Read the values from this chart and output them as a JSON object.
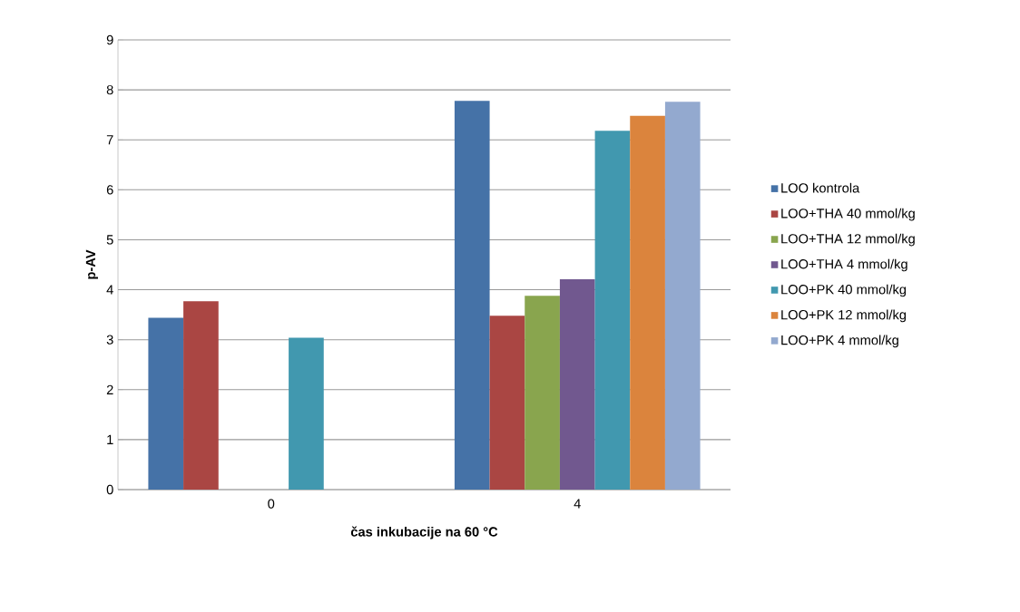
{
  "chart_data": {
    "type": "bar",
    "xlabel": "čas inkubacije  na 60 °C",
    "ylabel": "p-AV",
    "categories": [
      "0",
      "4"
    ],
    "series": [
      {
        "name": "LOO kontrola",
        "color": "#4572a7",
        "values": [
          3.44,
          7.78
        ]
      },
      {
        "name": "LOO+THA 40 mmol/kg",
        "color": "#aa4643",
        "values": [
          3.77,
          3.48
        ]
      },
      {
        "name": "LOO+THA 12 mmol/kg",
        "color": "#89a54e",
        "values": [
          null,
          3.88
        ]
      },
      {
        "name": "LOO+THA 4 mmol/kg",
        "color": "#71588f",
        "values": [
          null,
          4.21
        ]
      },
      {
        "name": "LOO+PK 40 mmol/kg",
        "color": "#4198af",
        "values": [
          3.04,
          7.18
        ]
      },
      {
        "name": "LOO+PK 12 mmol/kg",
        "color": "#db843d",
        "values": [
          null,
          7.48
        ]
      },
      {
        "name": "LOO+PK 4 mmol/kg",
        "color": "#93a9cf",
        "values": [
          null,
          7.76
        ]
      }
    ],
    "ylim": [
      0,
      9
    ],
    "yticks": [
      0,
      1,
      2,
      3,
      4,
      5,
      6,
      7,
      8,
      9
    ],
    "grid": "y",
    "legend": "right"
  }
}
